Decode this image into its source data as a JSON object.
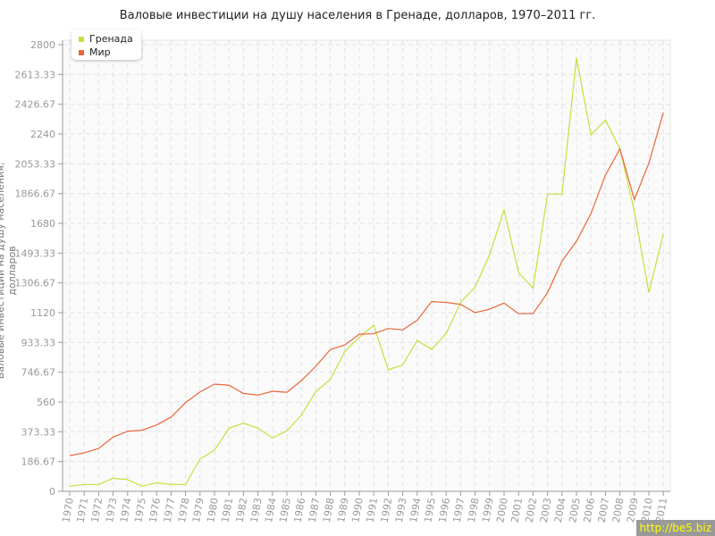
{
  "chart_data": {
    "type": "line",
    "title": "Валовые инвестиции на душу населения в Гренаде, долларов, 1970–2011 гг.",
    "xlabel": "",
    "ylabel": "Валовые инвестиции на душу населения, долларов",
    "ylim": [
      0,
      2800
    ],
    "yticks": [
      "0",
      "186.67",
      "373.33",
      "560",
      "746.67",
      "933.33",
      "1120",
      "1306.67",
      "1493.33",
      "1680",
      "1866.67",
      "2053.33",
      "2240",
      "2426.67",
      "2613.33",
      "2800"
    ],
    "x": [
      "1970",
      "1971",
      "1972",
      "1973",
      "1974",
      "1975",
      "1976",
      "1977",
      "1978",
      "1979",
      "1980",
      "1981",
      "1982",
      "1983",
      "1984",
      "1985",
      "1986",
      "1987",
      "1988",
      "1989",
      "1990",
      "1991",
      "1992",
      "1993",
      "1994",
      "1995",
      "1996",
      "1997",
      "1998",
      "1999",
      "2000",
      "2001",
      "2002",
      "2003",
      "2004",
      "2005",
      "2006",
      "2007",
      "2008",
      "2009",
      "2010",
      "2011"
    ],
    "grid": true,
    "legend": "top-left",
    "series": [
      {
        "name": "Гренада",
        "color": "#c5e03c",
        "values": [
          32,
          43,
          43,
          82,
          73,
          32,
          54,
          43,
          43,
          203,
          258,
          396,
          427,
          396,
          334,
          379,
          478,
          625,
          702,
          877,
          966,
          1041,
          762,
          793,
          946,
          890,
          989,
          1185,
          1279,
          1484,
          1764,
          1372,
          1273,
          1863,
          1863,
          2716,
          2234,
          2328,
          2147,
          1755,
          1247,
          1615
        ]
      },
      {
        "name": "Мир",
        "color": "#e8663a",
        "values": [
          224,
          241,
          269,
          340,
          377,
          383,
          416,
          465,
          556,
          623,
          672,
          665,
          614,
          603,
          627,
          621,
          694,
          784,
          889,
          917,
          985,
          988,
          1021,
          1012,
          1073,
          1189,
          1184,
          1172,
          1120,
          1142,
          1180,
          1114,
          1114,
          1245,
          1443,
          1568,
          1740,
          1982,
          2147,
          1829,
          2057,
          2374
        ]
      }
    ]
  },
  "watermark": "http://be5.biz"
}
